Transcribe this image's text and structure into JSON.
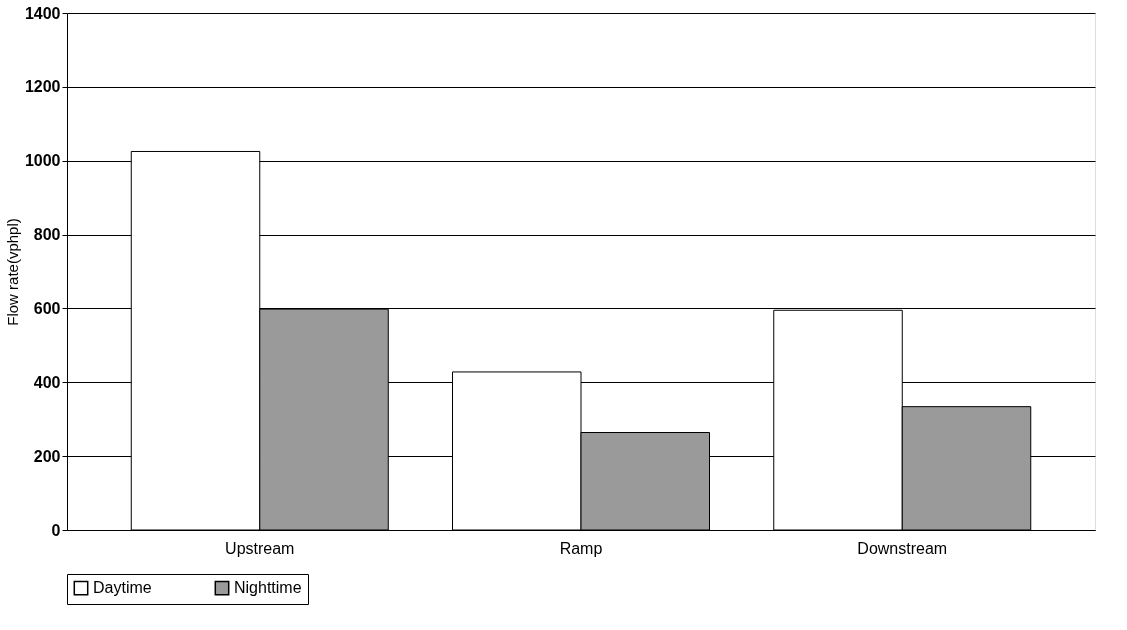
{
  "chart_data": {
    "type": "bar",
    "ylabel": "Flow rate(vphpl)",
    "categories": [
      "Upstream",
      "Ramp",
      "Downstream"
    ],
    "series": [
      {
        "name": "Daytime",
        "color": "#ffffff",
        "values": [
          1025,
          428,
          595
        ]
      },
      {
        "name": "Nighttime",
        "color": "#9a9a9a",
        "values": [
          598,
          264,
          334
        ]
      }
    ],
    "ylim": [
      0,
      1400
    ],
    "yticks": [
      0,
      200,
      400,
      600,
      800,
      1000,
      1200,
      1400
    ],
    "grid": "y",
    "legend": "bottom"
  }
}
